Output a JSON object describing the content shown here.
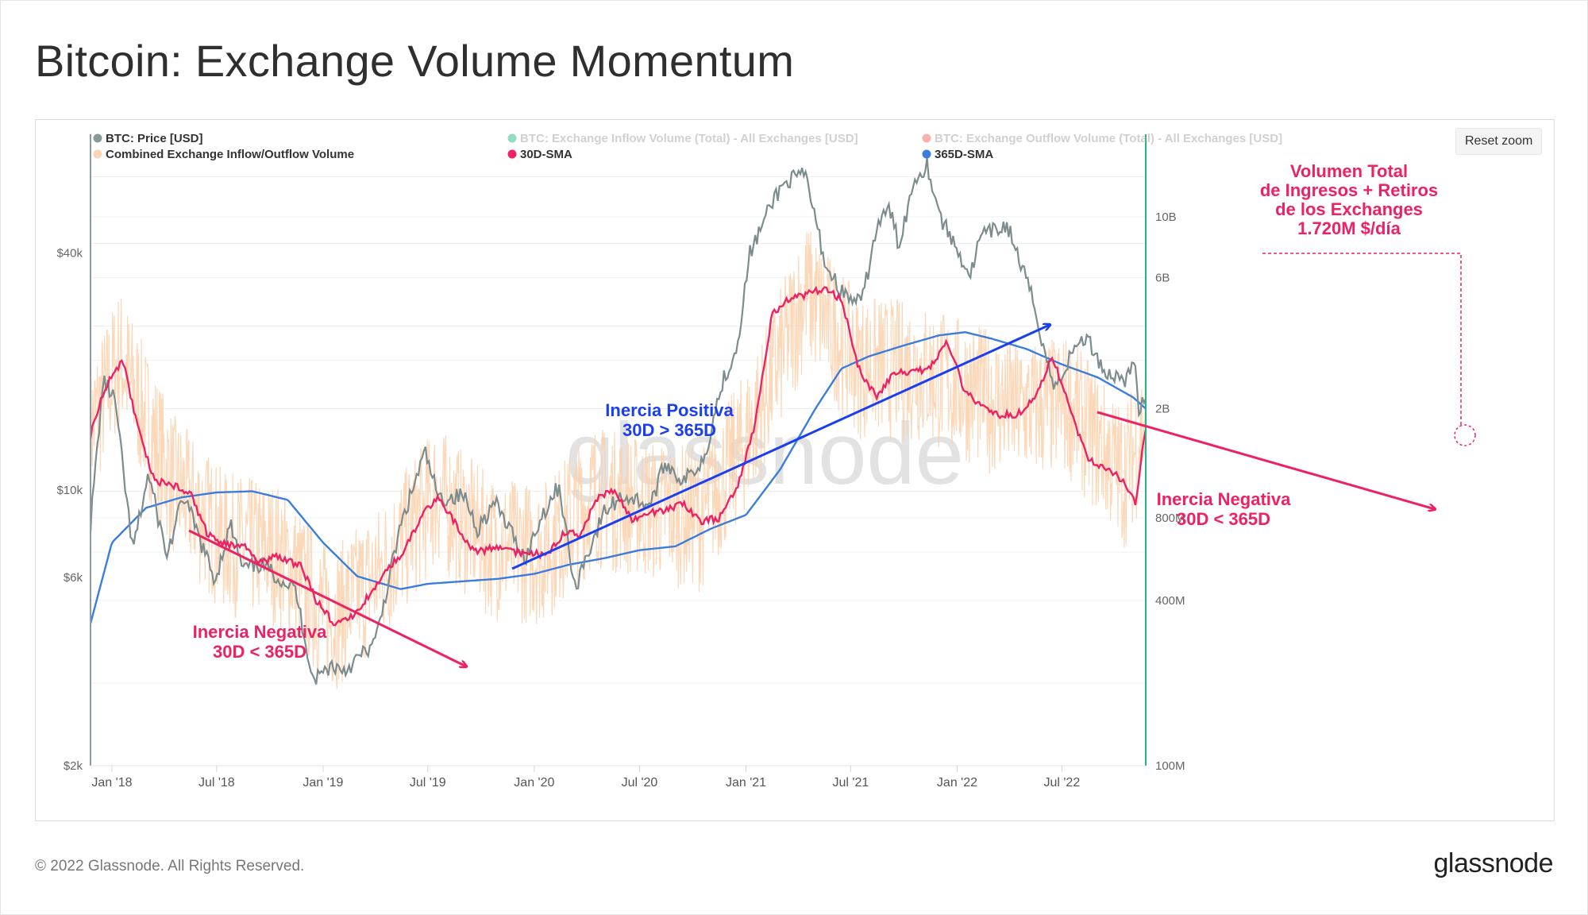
{
  "page": {
    "title": "Bitcoin: Exchange Volume Momentum",
    "footer_copyright": "© 2022 Glassnode. All Rights Reserved.",
    "footer_logo": "glassnode",
    "watermark": "glassnode"
  },
  "toolbar": {
    "reset_zoom_label": "Reset zoom"
  },
  "legend": [
    {
      "label": "BTC: Price [USD]",
      "color": "#8a9a9b",
      "active": true
    },
    {
      "label": "BTC: Exchange Inflow Volume (Total) - All Exchanges [USD]",
      "color": "#11b07a",
      "active": false
    },
    {
      "label": "BTC: Exchange Outflow Volume (Total) - All Exchanges [USD]",
      "color": "#f0554a",
      "active": false
    },
    {
      "label": "Combined Exchange Inflow/Outflow Volume",
      "color": "#fbd5b5",
      "active": true
    },
    {
      "label": "30D-SMA",
      "color": "#ee2163",
      "active": true
    },
    {
      "label": "365D-SMA",
      "color": "#3b7ddd",
      "active": true
    }
  ],
  "colors": {
    "price": "#7d8c8d",
    "combined_volume": "#fbd0ab",
    "sma30": "#ee2163",
    "sma365": "#3b7ddd",
    "annotation_pink": "#ee2163",
    "annotation_blue": "#1a3ff0",
    "left_axis_line": "#8c9aa7",
    "right_axis_line": "#1fb784"
  },
  "annotations": {
    "neg_left": [
      "Inercia Negativa",
      "30D < 365D"
    ],
    "positive": [
      "Inercia Positiva",
      "30D > 365D"
    ],
    "neg_right": [
      "Inercia Negativa",
      "30D < 365D"
    ],
    "total": [
      "Volumen Total",
      "de Ingresos + Retiros",
      "de los Exchanges",
      "1.720M $/día"
    ]
  },
  "chart_data": {
    "type": "line",
    "title": "Bitcoin: Exchange Volume Momentum",
    "x_axis": {
      "type": "datetime",
      "range": [
        "2017-11-25",
        "2022-11-23"
      ],
      "ticks": [
        "Jan '18",
        "Jul '18",
        "Jan '19",
        "Jul '19",
        "Jan '20",
        "Jul '20",
        "Jan '21",
        "Jul '21",
        "Jan '22",
        "Jul '22"
      ],
      "tick_dates": [
        "2018-01-01",
        "2018-07-01",
        "2019-01-01",
        "2019-07-01",
        "2020-01-01",
        "2020-07-01",
        "2021-01-01",
        "2021-07-01",
        "2022-01-01",
        "2022-07-01"
      ]
    },
    "y_axis_left": {
      "label": "BTC: Price [USD]",
      "scale": "log",
      "range": [
        2000,
        80000
      ],
      "ticks": [
        2000,
        6000,
        10000,
        40000
      ],
      "tick_labels": [
        "$2k",
        "$6k",
        "$10k",
        "$40k"
      ]
    },
    "y_axis_right": {
      "label": "Volume [USD]",
      "scale": "log",
      "range": [
        100000000,
        20000000000
      ],
      "ticks": [
        100000000,
        400000000,
        800000000,
        2000000000,
        6000000000,
        10000000000
      ],
      "tick_labels": [
        "100M",
        "400M",
        "800M",
        "2B",
        "6B",
        "10B"
      ]
    },
    "grid": true,
    "legend_position": "top",
    "series": [
      {
        "name": "BTC: Price [USD]",
        "axis": "left",
        "x": [
          "2017-11-25",
          "2017-12-17",
          "2018-01-06",
          "2018-02-06",
          "2018-03-05",
          "2018-04-06",
          "2018-05-05",
          "2018-06-28",
          "2018-07-25",
          "2018-08-15",
          "2018-09-15",
          "2018-11-14",
          "2018-12-15",
          "2019-01-15",
          "2019-02-08",
          "2019-04-01",
          "2019-05-14",
          "2019-06-26",
          "2019-07-20",
          "2019-09-01",
          "2019-09-25",
          "2019-10-25",
          "2019-12-17",
          "2020-01-15",
          "2020-02-13",
          "2020-03-12",
          "2020-03-20",
          "2020-05-01",
          "2020-06-01",
          "2020-07-20",
          "2020-08-15",
          "2020-09-15",
          "2020-10-20",
          "2020-11-20",
          "2020-12-16",
          "2021-01-08",
          "2021-02-21",
          "2021-03-13",
          "2021-04-14",
          "2021-05-19",
          "2021-06-22",
          "2021-07-20",
          "2021-08-15",
          "2021-09-06",
          "2021-09-22",
          "2021-10-20",
          "2021-11-10",
          "2021-12-04",
          "2022-01-24",
          "2022-02-10",
          "2022-03-29",
          "2022-05-10",
          "2022-06-18",
          "2022-07-30",
          "2022-08-15",
          "2022-09-15",
          "2022-10-20",
          "2022-11-05",
          "2022-11-10",
          "2022-11-23"
        ],
        "y": [
          8200,
          19000,
          17000,
          7000,
          11000,
          6800,
          9700,
          5900,
          8200,
          6300,
          6500,
          5600,
          3300,
          3600,
          3500,
          4100,
          8000,
          12500,
          9500,
          9700,
          8000,
          9300,
          6700,
          8700,
          10300,
          5500,
          6200,
          8800,
          9700,
          9200,
          11800,
          10500,
          12000,
          18600,
          23000,
          40000,
          56000,
          61000,
          63000,
          37000,
          31000,
          29800,
          46500,
          52000,
          42000,
          62000,
          67000,
          49000,
          35000,
          44000,
          47000,
          31000,
          18000,
          24000,
          24100,
          19800,
          19200,
          21000,
          16300,
          16500
        ]
      },
      {
        "name": "30D-SMA",
        "axis": "right",
        "x": [
          "2017-11-25",
          "2017-12-20",
          "2018-01-20",
          "2018-02-15",
          "2018-03-15",
          "2018-04-15",
          "2018-05-15",
          "2018-06-15",
          "2018-07-15",
          "2018-08-15",
          "2018-09-15",
          "2018-10-15",
          "2018-11-25",
          "2018-12-20",
          "2019-01-20",
          "2019-02-15",
          "2019-03-15",
          "2019-04-15",
          "2019-05-20",
          "2019-06-25",
          "2019-07-20",
          "2019-08-20",
          "2019-09-20",
          "2019-10-25",
          "2019-11-25",
          "2019-12-25",
          "2020-01-20",
          "2020-02-20",
          "2020-03-20",
          "2020-04-20",
          "2020-05-20",
          "2020-06-20",
          "2020-07-20",
          "2020-08-15",
          "2020-09-15",
          "2020-10-15",
          "2020-11-15",
          "2020-12-15",
          "2021-01-15",
          "2021-02-15",
          "2021-03-15",
          "2021-04-15",
          "2021-05-15",
          "2021-06-15",
          "2021-07-15",
          "2021-08-15",
          "2021-09-15",
          "2021-10-15",
          "2021-11-15",
          "2021-12-15",
          "2022-01-15",
          "2022-02-15",
          "2022-03-15",
          "2022-04-15",
          "2022-05-15",
          "2022-06-15",
          "2022-07-15",
          "2022-08-15",
          "2022-09-15",
          "2022-10-15",
          "2022-11-05",
          "2022-11-23"
        ],
        "y": [
          1600000000,
          2400000000,
          3000000000,
          1700000000,
          1100000000,
          1050000000,
          1000000000,
          700000000,
          640000000,
          640000000,
          550000000,
          580000000,
          530000000,
          400000000,
          330000000,
          340000000,
          400000000,
          500000000,
          600000000,
          850000000,
          950000000,
          750000000,
          600000000,
          620000000,
          600000000,
          600000000,
          580000000,
          700000000,
          700000000,
          950000000,
          1000000000,
          780000000,
          840000000,
          850000000,
          900000000,
          780000000,
          800000000,
          1000000000,
          1700000000,
          4400000000,
          5000000000,
          5200000000,
          5500000000,
          5000000000,
          2800000000,
          2200000000,
          2700000000,
          2700000000,
          2800000000,
          3500000000,
          2300000000,
          2000000000,
          1900000000,
          1900000000,
          2200000000,
          3100000000,
          2000000000,
          1300000000,
          1200000000,
          1100000000,
          900000000,
          1720000000
        ]
      },
      {
        "name": "365D-SMA",
        "axis": "right",
        "x": [
          "2017-11-25",
          "2018-01-01",
          "2018-03-01",
          "2018-05-01",
          "2018-07-01",
          "2018-09-01",
          "2018-11-01",
          "2019-01-01",
          "2019-03-01",
          "2019-05-15",
          "2019-07-01",
          "2019-09-01",
          "2019-11-01",
          "2020-01-01",
          "2020-03-01",
          "2020-05-01",
          "2020-07-01",
          "2020-09-01",
          "2020-11-01",
          "2021-01-01",
          "2021-03-01",
          "2021-05-01",
          "2021-06-15",
          "2021-08-01",
          "2021-10-01",
          "2021-12-01",
          "2022-01-15",
          "2022-03-01",
          "2022-05-01",
          "2022-07-01",
          "2022-09-01",
          "2022-11-01",
          "2022-11-23"
        ],
        "y": [
          330000000,
          650000000,
          870000000,
          950000000,
          990000000,
          1000000000,
          930000000,
          650000000,
          490000000,
          440000000,
          460000000,
          470000000,
          480000000,
          500000000,
          540000000,
          570000000,
          610000000,
          630000000,
          730000000,
          820000000,
          1200000000,
          2000000000,
          2800000000,
          3100000000,
          3400000000,
          3700000000,
          3800000000,
          3600000000,
          3300000000,
          2900000000,
          2600000000,
          2200000000,
          2000000000
        ]
      },
      {
        "name": "Combined Exchange Inflow/Outflow Volume",
        "axis": "right",
        "note": "daily series; values follow the 30D-SMA level with day-to-day spikes",
        "x": [
          "2017-11-25",
          "2018-01-15",
          "2018-04-15",
          "2018-07-15",
          "2018-10-15",
          "2019-01-15",
          "2019-04-15",
          "2019-07-15",
          "2019-10-15",
          "2020-01-15",
          "2020-04-15",
          "2020-07-15",
          "2020-10-15",
          "2021-01-15",
          "2021-04-15",
          "2021-07-15",
          "2021-10-15",
          "2022-01-15",
          "2022-04-15",
          "2022-07-15",
          "2022-10-15",
          "2022-11-23"
        ],
        "y": [
          1600000000,
          3000000000,
          1050000000,
          640000000,
          580000000,
          330000000,
          500000000,
          950000000,
          620000000,
          580000000,
          950000000,
          840000000,
          780000000,
          1700000000,
          5200000000,
          2800000000,
          2700000000,
          2300000000,
          1900000000,
          2000000000,
          1100000000,
          1720000000
        ]
      }
    ]
  }
}
